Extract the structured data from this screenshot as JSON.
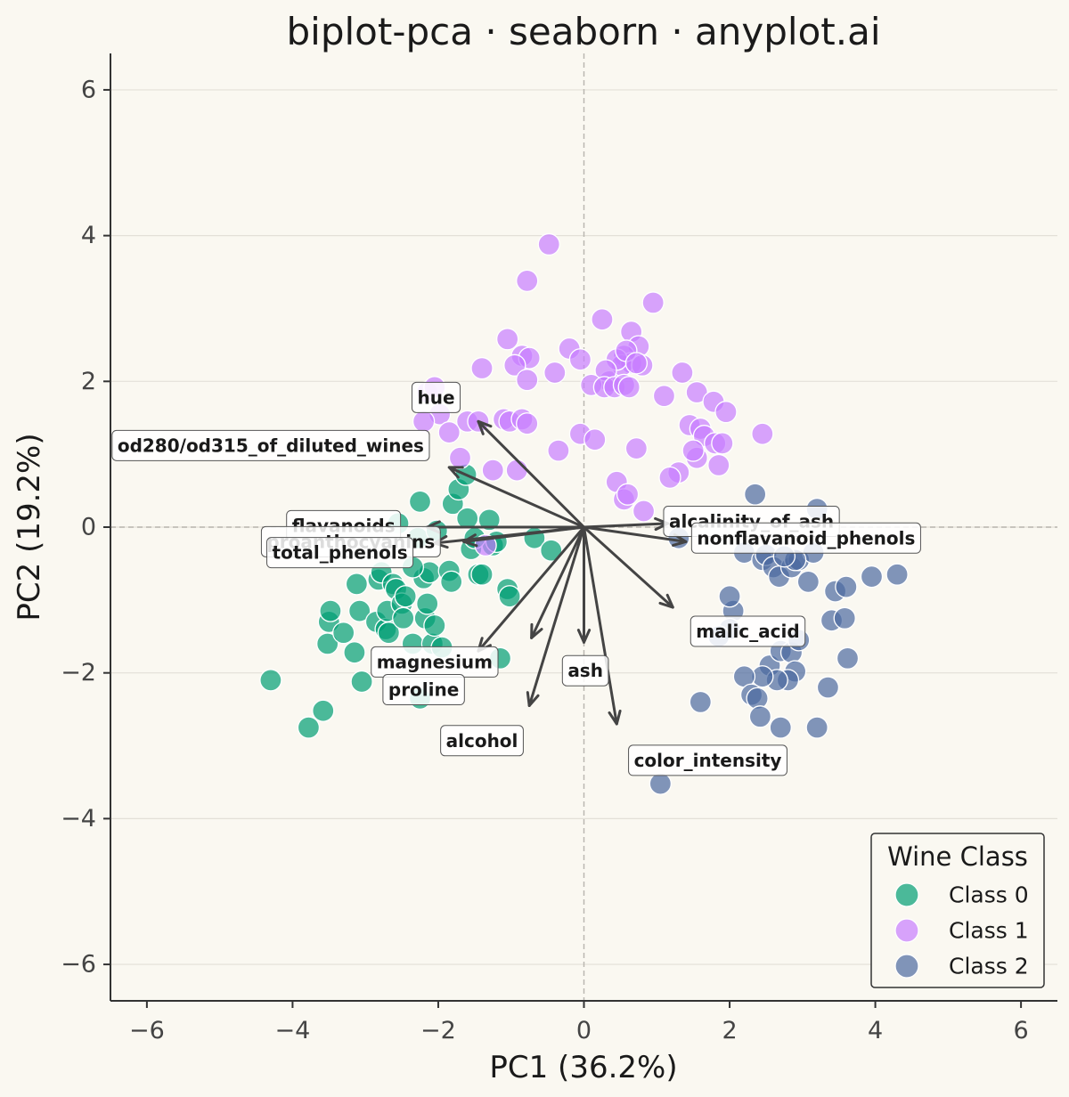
{
  "chart_data": {
    "type": "scatter",
    "title": "biplot-pca · seaborn · anyplot.ai",
    "xlabel": "PC1 (36.2%)",
    "ylabel": "PC2 (19.2%)",
    "xlim": [
      -6.5,
      6.5
    ],
    "ylim": [
      -6.5,
      6.5
    ],
    "xticks": [
      -6,
      -4,
      -2,
      0,
      2,
      4,
      6
    ],
    "yticks": [
      -6,
      -4,
      -2,
      0,
      2,
      4,
      6
    ],
    "xtick_labels": [
      "−6",
      "−4",
      "−2",
      "0",
      "2",
      "4",
      "6"
    ],
    "ytick_labels": [
      "−6",
      "−4",
      "−2",
      "0",
      "2",
      "4",
      "6"
    ],
    "grid": "horizontal",
    "reference_lines": {
      "x": 0,
      "y": 0,
      "style": "dashed"
    },
    "legend": {
      "title": "Wine Class",
      "placement": "bottom-right"
    },
    "series": [
      {
        "name": "Class 0",
        "color": "#009E73",
        "points": [
          [
            -4.3,
            -2.1
          ],
          [
            -3.78,
            -2.75
          ],
          [
            -3.58,
            -2.52
          ],
          [
            -3.5,
            -1.3
          ],
          [
            -3.52,
            -1.6
          ],
          [
            -3.48,
            -1.15
          ],
          [
            -3.3,
            -1.45
          ],
          [
            -3.15,
            -1.72
          ],
          [
            -3.12,
            -0.78
          ],
          [
            -3.08,
            -1.15
          ],
          [
            -3.05,
            -2.12
          ],
          [
            -2.85,
            -1.3
          ],
          [
            -2.82,
            -0.72
          ],
          [
            -2.78,
            -0.62
          ],
          [
            -2.72,
            -1.4
          ],
          [
            -2.7,
            -1.15
          ],
          [
            -2.68,
            -1.45
          ],
          [
            -2.62,
            -0.78
          ],
          [
            -2.58,
            -0.85
          ],
          [
            -2.5,
            -1.05
          ],
          [
            -2.48,
            -1.25
          ],
          [
            -2.45,
            -0.95
          ],
          [
            -2.35,
            -1.6
          ],
          [
            -2.28,
            -0.15
          ],
          [
            -2.25,
            0.35
          ],
          [
            -2.2,
            -0.7
          ],
          [
            -2.18,
            -1.25
          ],
          [
            -2.15,
            -1.05
          ],
          [
            -2.12,
            -0.62
          ],
          [
            -2.08,
            -1.6
          ],
          [
            -2.05,
            -1.35
          ],
          [
            -2.02,
            -0.05
          ],
          [
            -1.95,
            -1.65
          ],
          [
            -1.85,
            -0.6
          ],
          [
            -1.82,
            -0.75
          ],
          [
            -1.8,
            0.32
          ],
          [
            -1.72,
            0.52
          ],
          [
            -1.62,
            0.72
          ],
          [
            -1.55,
            -0.3
          ],
          [
            -1.45,
            -0.65
          ],
          [
            -1.4,
            -0.65
          ],
          [
            -1.3,
            0.1
          ],
          [
            -1.25,
            -0.25
          ],
          [
            -1.2,
            -0.2
          ],
          [
            -1.15,
            -1.8
          ],
          [
            -1.05,
            -0.85
          ],
          [
            -1.02,
            -0.95
          ],
          [
            -0.68,
            -0.15
          ],
          [
            -0.45,
            -0.32
          ],
          [
            -2.55,
            0.05
          ],
          [
            -2.35,
            -0.55
          ],
          [
            -1.6,
            0.12
          ],
          [
            -2.25,
            -2.35
          ],
          [
            -1.5,
            -0.15
          ]
        ]
      },
      {
        "name": "Class 1",
        "color": "#C77DFF",
        "points": [
          [
            -0.48,
            3.88
          ],
          [
            -0.78,
            3.38
          ],
          [
            0.95,
            3.08
          ],
          [
            0.25,
            2.85
          ],
          [
            0.65,
            2.68
          ],
          [
            -1.05,
            2.58
          ],
          [
            0.75,
            2.48
          ],
          [
            -0.85,
            2.35
          ],
          [
            -0.75,
            2.32
          ],
          [
            -0.2,
            2.45
          ],
          [
            -0.05,
            2.3
          ],
          [
            0.35,
            2.0
          ],
          [
            0.55,
            2.35
          ],
          [
            0.65,
            2.25
          ],
          [
            0.52,
            2.22
          ],
          [
            0.8,
            2.22
          ],
          [
            0.45,
            2.3
          ],
          [
            0.58,
            2.42
          ],
          [
            0.3,
            2.15
          ],
          [
            0.72,
            2.25
          ],
          [
            -1.4,
            2.18
          ],
          [
            -0.95,
            2.22
          ],
          [
            -0.4,
            2.12
          ],
          [
            1.35,
            2.12
          ],
          [
            0.1,
            1.95
          ],
          [
            0.28,
            1.92
          ],
          [
            0.42,
            1.92
          ],
          [
            0.55,
            1.95
          ],
          [
            0.62,
            1.92
          ],
          [
            -0.78,
            2.02
          ],
          [
            1.1,
            1.8
          ],
          [
            1.55,
            1.85
          ],
          [
            1.78,
            1.72
          ],
          [
            1.95,
            1.58
          ],
          [
            -2.15,
            1.85
          ],
          [
            -2.05,
            1.92
          ],
          [
            -1.98,
            1.55
          ],
          [
            -1.6,
            1.45
          ],
          [
            -1.45,
            1.45
          ],
          [
            -1.1,
            1.48
          ],
          [
            -1.02,
            1.45
          ],
          [
            -0.85,
            1.48
          ],
          [
            -0.78,
            1.42
          ],
          [
            -2.2,
            1.45
          ],
          [
            -1.85,
            1.3
          ],
          [
            -0.05,
            1.28
          ],
          [
            0.15,
            1.2
          ],
          [
            1.45,
            1.4
          ],
          [
            1.6,
            1.35
          ],
          [
            1.65,
            1.25
          ],
          [
            1.8,
            1.15
          ],
          [
            1.9,
            1.15
          ],
          [
            2.45,
            1.28
          ],
          [
            -0.35,
            1.05
          ],
          [
            0.72,
            1.08
          ],
          [
            1.55,
            0.95
          ],
          [
            1.85,
            0.85
          ],
          [
            -1.25,
            0.78
          ],
          [
            -0.92,
            0.78
          ],
          [
            1.3,
            0.75
          ],
          [
            1.18,
            0.68
          ],
          [
            0.45,
            0.62
          ],
          [
            -1.7,
            0.95
          ],
          [
            0.55,
            0.38
          ],
          [
            0.82,
            0.22
          ],
          [
            -1.35,
            -0.25
          ],
          [
            1.5,
            1.05
          ],
          [
            0.6,
            0.45
          ]
        ]
      },
      {
        "name": "Class 2",
        "color": "#4C6AA0",
        "points": [
          [
            2.35,
            0.45
          ],
          [
            3.2,
            0.25
          ],
          [
            2.2,
            -0.35
          ],
          [
            2.45,
            -0.45
          ],
          [
            2.5,
            -0.38
          ],
          [
            2.6,
            -0.55
          ],
          [
            2.68,
            -0.68
          ],
          [
            2.85,
            -0.55
          ],
          [
            2.95,
            -0.45
          ],
          [
            3.15,
            -0.35
          ],
          [
            3.08,
            -0.75
          ],
          [
            3.45,
            -0.88
          ],
          [
            3.6,
            -0.82
          ],
          [
            3.95,
            -0.68
          ],
          [
            4.3,
            -0.65
          ],
          [
            3.4,
            -1.28
          ],
          [
            3.58,
            -1.25
          ],
          [
            3.62,
            -1.8
          ],
          [
            2.05,
            -1.15
          ],
          [
            2.0,
            -1.4
          ],
          [
            1.85,
            -1.5
          ],
          [
            2.55,
            -1.9
          ],
          [
            2.7,
            -1.7
          ],
          [
            2.85,
            -1.72
          ],
          [
            2.95,
            -1.55
          ],
          [
            2.9,
            -1.98
          ],
          [
            2.8,
            -2.1
          ],
          [
            2.65,
            -2.1
          ],
          [
            2.45,
            -2.05
          ],
          [
            2.2,
            -2.05
          ],
          [
            2.3,
            -2.3
          ],
          [
            2.38,
            -2.35
          ],
          [
            2.42,
            -2.6
          ],
          [
            1.6,
            -2.4
          ],
          [
            2.7,
            -2.75
          ],
          [
            3.2,
            -2.75
          ],
          [
            3.35,
            -2.2
          ],
          [
            1.05,
            -3.52
          ],
          [
            1.3,
            -0.15
          ],
          [
            2.9,
            -0.45
          ],
          [
            2.0,
            -0.95
          ],
          [
            2.75,
            -0.4
          ]
        ]
      }
    ],
    "loadings": [
      {
        "name": "hue",
        "x": -1.45,
        "y": 1.45,
        "label_x": -2.03,
        "label_y": 1.78
      },
      {
        "name": "od280/od315_of_diluted_wines",
        "x": -1.85,
        "y": 0.82,
        "label_x": -4.3,
        "label_y": 1.12
      },
      {
        "name": "flavanoids",
        "x": -2.15,
        "y": 0.0,
        "label_x": -3.3,
        "label_y": 0.02
      },
      {
        "name": "proanthocyanins",
        "x": -1.65,
        "y": -0.2,
        "label_x": -3.2,
        "label_y": -0.2
      },
      {
        "name": "total_phenols",
        "x": -2.05,
        "y": -0.22,
        "label_x": -3.35,
        "label_y": -0.35
      },
      {
        "name": "magnesium",
        "x": -1.45,
        "y": -1.7,
        "label_x": -2.05,
        "label_y": -1.85
      },
      {
        "name": "proline",
        "x": -0.72,
        "y": -1.52,
        "label_x": -2.2,
        "label_y": -2.23
      },
      {
        "name": "alcohol",
        "x": -0.75,
        "y": -2.45,
        "label_x": -1.4,
        "label_y": -2.93
      },
      {
        "name": "ash",
        "x": 0.0,
        "y": -1.58,
        "label_x": 0.02,
        "label_y": -1.97
      },
      {
        "name": "color_intensity",
        "x": 0.45,
        "y": -2.7,
        "label_x": 1.7,
        "label_y": -3.2
      },
      {
        "name": "malic_acid",
        "x": 1.22,
        "y": -1.1,
        "label_x": 2.25,
        "label_y": -1.43
      },
      {
        "name": "alcalinity_of_ash",
        "x": 1.15,
        "y": 0.05,
        "label_x": 2.3,
        "label_y": 0.08
      },
      {
        "name": "nonflavanoid_phenols",
        "x": 1.4,
        "y": -0.2,
        "label_x": 3.05,
        "label_y": -0.15
      }
    ]
  }
}
